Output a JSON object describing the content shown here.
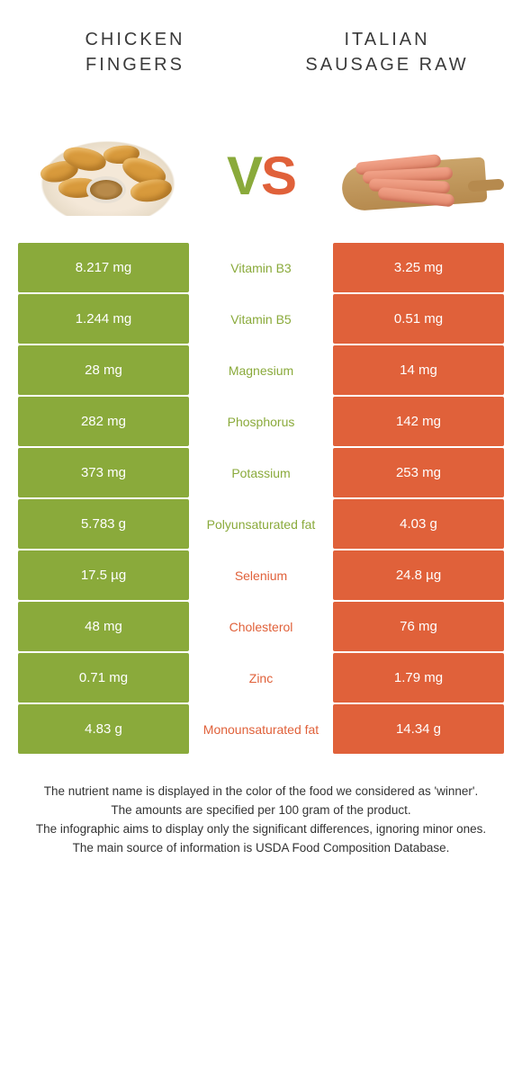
{
  "colors": {
    "left": "#8aaa3b",
    "right": "#e0613a",
    "mid_bg": "#ffffff",
    "text_dark": "#3a3a3a",
    "cell_text": "#ffffff"
  },
  "header": {
    "left_title": "CHICKEN FINGERS",
    "right_title": "ITALIAN SAUSAGE RAW",
    "vs_v": "V",
    "vs_s": "S"
  },
  "rows": [
    {
      "left": "8.217 mg",
      "label": "Vitamin B3",
      "right": "3.25 mg",
      "winner": "left"
    },
    {
      "left": "1.244 mg",
      "label": "Vitamin B5",
      "right": "0.51 mg",
      "winner": "left"
    },
    {
      "left": "28 mg",
      "label": "Magnesium",
      "right": "14 mg",
      "winner": "left"
    },
    {
      "left": "282 mg",
      "label": "Phosphorus",
      "right": "142 mg",
      "winner": "left"
    },
    {
      "left": "373 mg",
      "label": "Potassium",
      "right": "253 mg",
      "winner": "left"
    },
    {
      "left": "5.783 g",
      "label": "Polyunsaturated fat",
      "right": "4.03 g",
      "winner": "left"
    },
    {
      "left": "17.5 µg",
      "label": "Selenium",
      "right": "24.8 µg",
      "winner": "right"
    },
    {
      "left": "48 mg",
      "label": "Cholesterol",
      "right": "76 mg",
      "winner": "right"
    },
    {
      "left": "0.71 mg",
      "label": "Zinc",
      "right": "1.79 mg",
      "winner": "right"
    },
    {
      "left": "4.83 g",
      "label": "Monounsaturated fat",
      "right": "14.34 g",
      "winner": "right"
    }
  ],
  "footer": {
    "line1": "The nutrient name is displayed in the color of the food we considered as 'winner'.",
    "line2": "The amounts are specified per 100 gram of the product.",
    "line3": "The infographic aims to display only the significant differences, ignoring minor ones.",
    "line4": "The main source of information is USDA Food Composition Database."
  }
}
